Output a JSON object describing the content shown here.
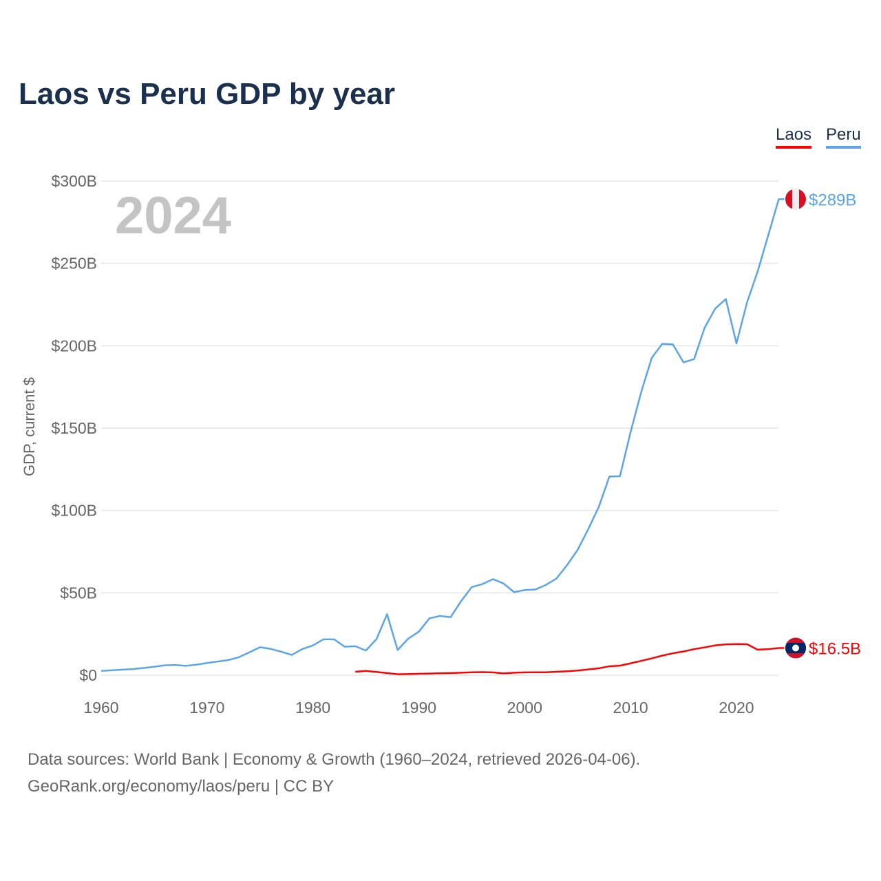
{
  "title": "Laos vs Peru GDP by year",
  "legend": [
    {
      "label": "Laos",
      "color": "#ff0000"
    },
    {
      "label": "Peru",
      "color": "#5aa5ea"
    }
  ],
  "year_watermark": "2024",
  "footer": {
    "line1": "Data sources: World Bank | Economy & Growth (1960–2024, retrieved 2026-04-06).",
    "line2": "GeoRank.org/economy/laos/peru | CC BY"
  },
  "chart_data": {
    "type": "line",
    "title": "Laos vs Peru GDP by year",
    "xlabel": "",
    "ylabel": "GDP, current $",
    "xlim": [
      1960,
      2024
    ],
    "ylim": [
      0,
      300
    ],
    "x_ticks": [
      "1960",
      "1970",
      "1980",
      "1990",
      "2000",
      "2010",
      "2020"
    ],
    "y_ticks": [
      "$0",
      "$50B",
      "$100B",
      "$150B",
      "$200B",
      "$250B",
      "$300B"
    ],
    "grid": true,
    "legend_position": "top-right",
    "series": [
      {
        "name": "Peru",
        "color": "#5aa5ea",
        "end_label": "$289B",
        "flag": "peru-flag",
        "start_year": 1960,
        "values": [
          2.6,
          3.0,
          3.4,
          3.7,
          4.4,
          5.1,
          6.0,
          6.2,
          5.7,
          6.4,
          7.4,
          8.3,
          9.2,
          10.9,
          13.9,
          17.0,
          16.0,
          14.3,
          12.3,
          15.9,
          18.1,
          21.8,
          21.8,
          17.3,
          17.6,
          15.0,
          21.9,
          37.0,
          15.3,
          22.2,
          26.4,
          34.5,
          36.0,
          35.2,
          45.0,
          53.5,
          55.3,
          58.3,
          55.7,
          50.4,
          51.7,
          52.0,
          54.8,
          58.7,
          66.8,
          76.1,
          88.6,
          102.2,
          120.6,
          120.8,
          147.5,
          171.8,
          192.6,
          201.2,
          200.8,
          189.9,
          191.9,
          211.0,
          222.6,
          228.3,
          201.4,
          226.3,
          245.0,
          267.0,
          289.0
        ]
      },
      {
        "name": "Laos",
        "color": "#ff0000",
        "end_label": "$16.5B",
        "flag": "laos-flag",
        "start_year": 1984,
        "values": [
          2.1,
          2.6,
          2.0,
          1.3,
          0.6,
          0.7,
          0.9,
          1.0,
          1.2,
          1.3,
          1.5,
          1.8,
          1.9,
          1.7,
          1.1,
          1.5,
          1.7,
          1.8,
          1.8,
          2.1,
          2.4,
          2.8,
          3.5,
          4.2,
          5.4,
          5.8,
          7.2,
          8.7,
          10.2,
          11.9,
          13.3,
          14.4,
          15.8,
          16.9,
          18.1,
          18.7,
          18.9,
          18.8,
          15.5,
          15.8,
          16.5
        ]
      }
    ]
  }
}
